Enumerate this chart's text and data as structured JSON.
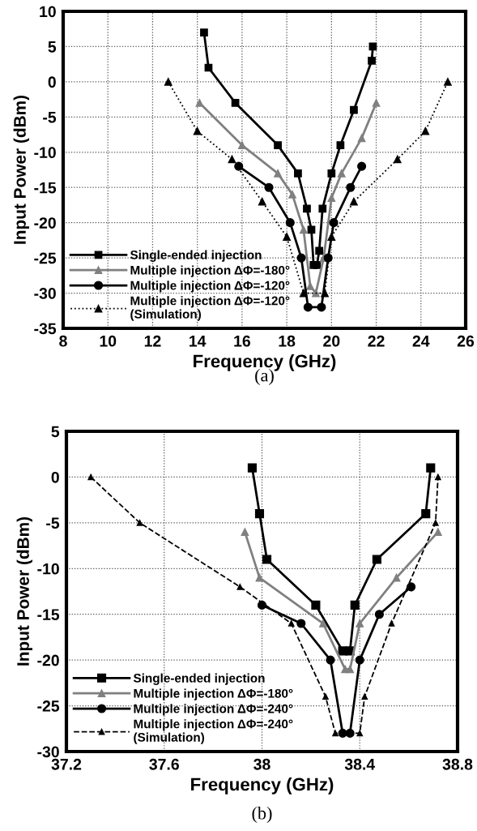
{
  "chart_data": [
    {
      "type": "line",
      "xlabel": "Frequency (GHz)",
      "ylabel": "Input Power (dBm)",
      "annotations": [
        "(a)"
      ],
      "xlim": [
        8,
        26
      ],
      "xticks": [
        8,
        10,
        12,
        14,
        16,
        18,
        20,
        22,
        24,
        26
      ],
      "ylim": [
        -35,
        10
      ],
      "yticks": [
        -35,
        -30,
        -25,
        -20,
        -15,
        -10,
        -5,
        0,
        5,
        10
      ],
      "grid": true,
      "legend": "bottom left",
      "series": [
        {
          "name": "Single-ended injection",
          "color": "#000000",
          "marker": "square",
          "line_style": "solid",
          "x": [
            14.3,
            14.5,
            15.7,
            17.6,
            18.5,
            18.9,
            19.1,
            19.2,
            19.35,
            19.45,
            19.6,
            20.0,
            20.4,
            21.0,
            21.8,
            21.85
          ],
          "values": [
            7,
            2,
            -3,
            -9,
            -13,
            -18,
            -21,
            -26,
            -26,
            -24,
            -18,
            -13,
            -9,
            -4,
            3,
            5
          ]
        },
        {
          "name": "Multiple injection ΔΦ=-180°",
          "color": "#808080",
          "marker": "triangle",
          "line_style": "solid",
          "x": [
            14.1,
            16.0,
            17.6,
            18.25,
            18.75,
            19.05,
            19.3,
            19.65,
            20.0,
            20.45,
            21.35,
            22.0
          ],
          "values": [
            -3,
            -9,
            -13,
            -16,
            -21,
            -29,
            -30,
            -25,
            -16.5,
            -13,
            -8,
            -3
          ]
        },
        {
          "name": "Multiple injection ΔΦ=-120°",
          "color": "#000000",
          "marker": "circle",
          "line_style": "solid",
          "x": [
            15.85,
            17.2,
            18.15,
            18.65,
            18.95,
            19.55,
            19.85,
            20.1,
            20.85,
            21.35
          ],
          "values": [
            -12,
            -15,
            -20,
            -25,
            -32,
            -32,
            -25,
            -20,
            -15,
            -12
          ]
        },
        {
          "name": "Multiple injection ΔΦ=-120°\n(Simulation)",
          "color": "#000000",
          "marker": "triangle",
          "line_style": "dotted",
          "x": [
            12.7,
            14.0,
            15.55,
            16.9,
            18.0,
            18.75,
            19.7,
            20.0,
            21.0,
            22.95,
            24.2,
            25.2
          ],
          "values": [
            0,
            -7,
            -11,
            -17,
            -22,
            -30,
            -30,
            -22,
            -17,
            -11,
            -7,
            0
          ]
        }
      ]
    },
    {
      "type": "line",
      "xlabel": "Frequency (GHz)",
      "ylabel": "Input Power (dBm)",
      "annotations": [
        "(b)"
      ],
      "xlim": [
        37.2,
        38.8
      ],
      "xticks": [
        37.2,
        37.6,
        38,
        38.4,
        38.8
      ],
      "ylim": [
        -30,
        5
      ],
      "yticks": [
        -30,
        -25,
        -20,
        -15,
        -10,
        -5,
        0,
        5
      ],
      "grid": true,
      "legend": "bottom left",
      "series": [
        {
          "name": "Single-ended injection",
          "color": "#000000",
          "marker": "square",
          "line_style": "solid",
          "x": [
            37.96,
            37.99,
            38.02,
            38.22,
            38.33,
            38.36,
            38.38,
            38.47,
            38.67,
            38.69
          ],
          "values": [
            1,
            -4,
            -9,
            -14,
            -19,
            -19,
            -14,
            -9,
            -4,
            1
          ]
        },
        {
          "name": "Multiple injection ΔΦ=-180°",
          "color": "#808080",
          "marker": "triangle",
          "line_style": "solid",
          "x": [
            37.93,
            37.99,
            38.25,
            38.34,
            38.36,
            38.4,
            38.55,
            38.72
          ],
          "values": [
            -6,
            -11,
            -16,
            -21,
            -21,
            -16,
            -11,
            -6
          ]
        },
        {
          "name": "Multiple injection ΔΦ=-240°",
          "color": "#000000",
          "marker": "circle",
          "line_style": "solid",
          "x": [
            38.0,
            38.16,
            38.28,
            38.33,
            38.36,
            38.4,
            38.48,
            38.61
          ],
          "values": [
            -14,
            -16,
            -20,
            -28,
            -28,
            -20,
            -15,
            -12
          ]
        },
        {
          "name": "Multiple injection ΔΦ=-240°\n(Simulation)",
          "color": "#000000",
          "marker": "triangle",
          "line_style": "dashed",
          "x": [
            37.3,
            37.5,
            37.91,
            38.12,
            38.26,
            38.3,
            38.4,
            38.42,
            38.53,
            38.71,
            38.72
          ],
          "values": [
            0,
            -5,
            -12,
            -16,
            -24,
            -28,
            -28,
            -24,
            -16,
            -5,
            0
          ]
        }
      ]
    }
  ]
}
